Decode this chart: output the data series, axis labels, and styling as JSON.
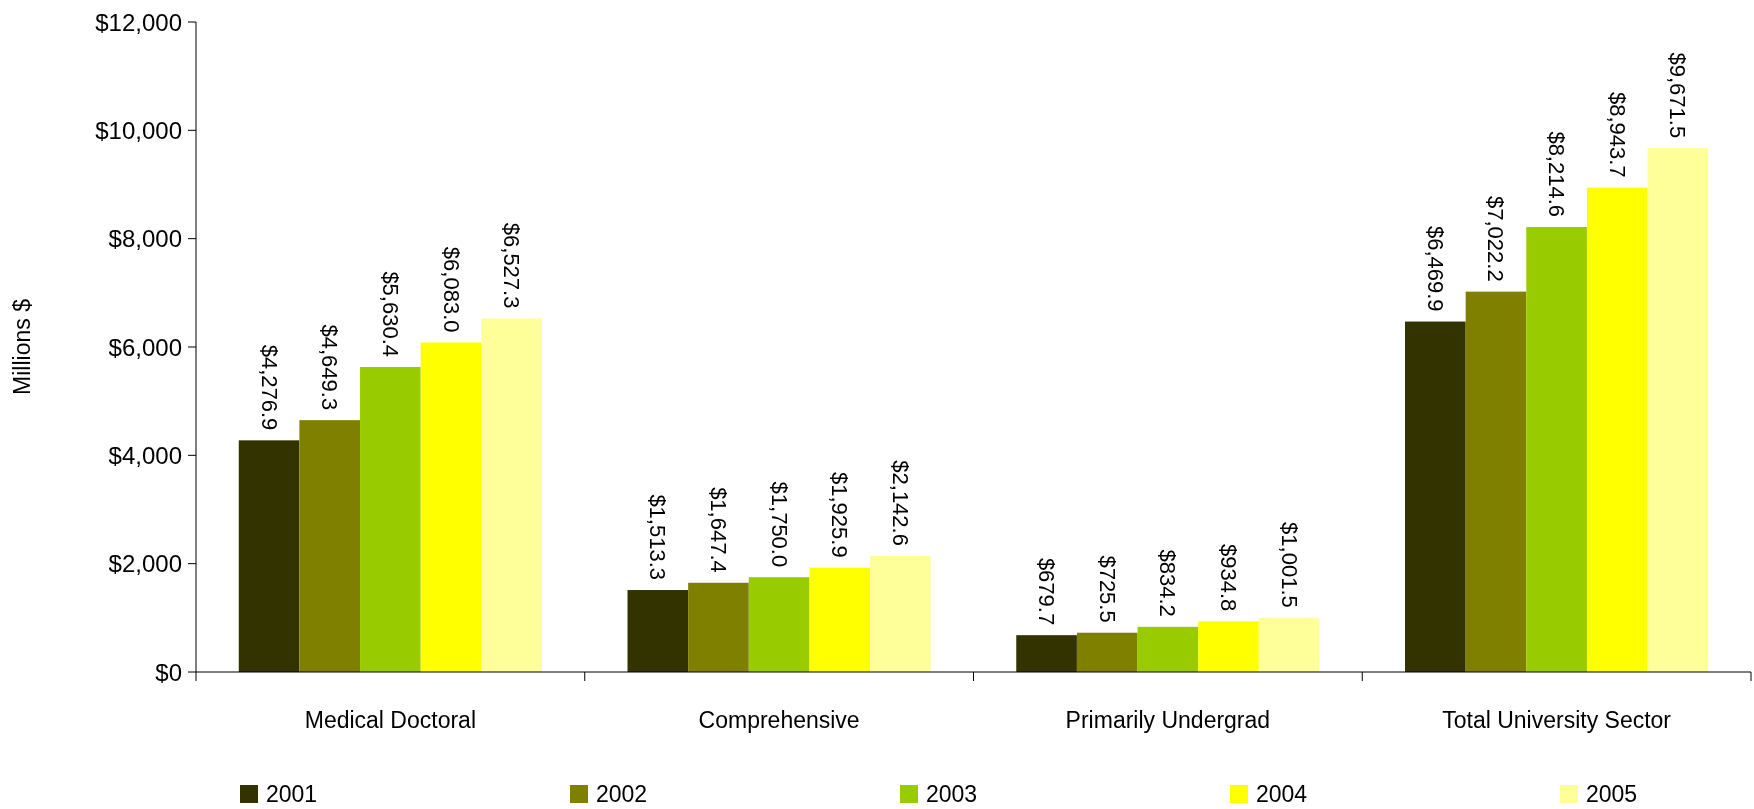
{
  "chart_data": {
    "type": "bar",
    "ylabel": "Millions $",
    "categories": [
      "Medical Doctoral",
      "Comprehensive",
      "Primarily Undergrad",
      "Total University Sector"
    ],
    "series": [
      {
        "name": "2001",
        "color": "#333300",
        "values": [
          4276.9,
          1513.3,
          679.7,
          6469.9
        ],
        "value_labels": [
          "$4,276.9",
          "$1,513.3",
          "$679.7",
          "$6,469.9"
        ]
      },
      {
        "name": "2002",
        "color": "#808000",
        "values": [
          4649.3,
          1647.4,
          725.5,
          7022.2
        ],
        "value_labels": [
          "$4,649.3",
          "$1,647.4",
          "$725.5",
          "$7,022.2"
        ]
      },
      {
        "name": "2003",
        "color": "#99cc00",
        "values": [
          5630.4,
          1750.0,
          834.2,
          8214.6
        ],
        "value_labels": [
          "$5,630.4",
          "$1,750.0",
          "$834.2",
          "$8,214.6"
        ]
      },
      {
        "name": "2004",
        "color": "#ffff00",
        "values": [
          6083.0,
          1925.9,
          934.8,
          8943.7
        ],
        "value_labels": [
          "$6,083.0",
          "$1,925.9",
          "$934.8",
          "$8,943.7"
        ]
      },
      {
        "name": "2005",
        "color": "#ffff99",
        "values": [
          6527.3,
          2142.6,
          1001.5,
          9671.5
        ],
        "value_labels": [
          "$6,527.3",
          "$2,142.6",
          "$1,001.5",
          "$9,671.5"
        ]
      }
    ],
    "ylim": [
      0,
      12000
    ],
    "yticks": [
      {
        "value": 0,
        "label": "$0"
      },
      {
        "value": 2000,
        "label": "$2,000"
      },
      {
        "value": 4000,
        "label": "$4,000"
      },
      {
        "value": 6000,
        "label": "$6,000"
      },
      {
        "value": 8000,
        "label": "$8,000"
      },
      {
        "value": 10000,
        "label": "$10,000"
      },
      {
        "value": 12000,
        "label": "$12,000"
      }
    ],
    "grid": false,
    "legend": "bottom"
  }
}
